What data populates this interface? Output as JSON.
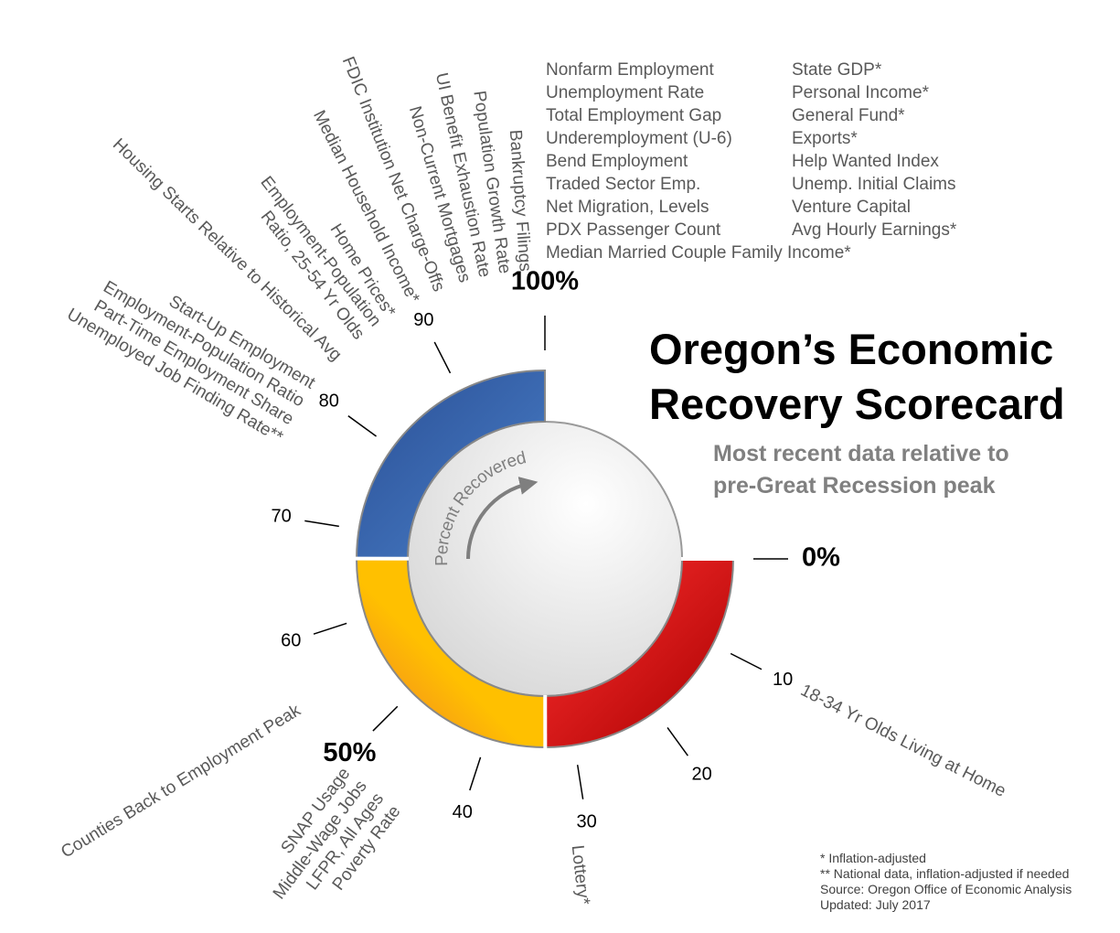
{
  "chart_data": {
    "type": "radial-scorecard",
    "title": [
      "Oregon’s Economic",
      "Recovery Scorecard"
    ],
    "subtitle": [
      "Most recent data relative to",
      "pre-Great Recession peak"
    ],
    "axis_label": "Percent Recovered",
    "range": [
      0,
      100
    ],
    "ticks": [
      {
        "value": 0,
        "label": "0%"
      },
      10,
      20,
      30,
      40,
      {
        "value": 50,
        "label": "50%"
      },
      60,
      70,
      80,
      90,
      {
        "value": 100,
        "label": "100%"
      }
    ],
    "segments": [
      {
        "start": 0,
        "end": 33.3,
        "color": "#c00000"
      },
      {
        "start": 33.3,
        "end": 66.7,
        "color": "#ffc000"
      },
      {
        "start": 66.7,
        "end": 100,
        "color": "#2f5597"
      }
    ],
    "indicators": [
      {
        "value": 10,
        "labels": [
          "18-34 Yr Olds Living at Home"
        ]
      },
      {
        "value": 31,
        "labels": [
          "Lottery*"
        ]
      },
      {
        "value": 47,
        "labels": [
          "SNAP Usage",
          "Middle-Wage Jobs",
          "LFPR, All Ages",
          "Poverty Rate"
        ]
      },
      {
        "value": 55,
        "labels": [
          "Counties Back to Employment Peak"
        ]
      },
      {
        "value": 78,
        "labels": [
          "Start-Up Employment",
          "Employment-Population Ratio",
          "Part-Time Employment Share",
          "Unemployed Job Finding Rate**"
        ]
      },
      {
        "value": 83,
        "labels": [
          "Housing Starts Relative to Historical Avg"
        ]
      },
      {
        "value": 86,
        "labels": [
          "Employment-Population",
          "Ratio, 25-54 Yr Olds"
        ]
      },
      {
        "value": 88,
        "labels": [
          "Home Prices*"
        ]
      },
      {
        "value": 90,
        "labels": [
          "Median Household Income*"
        ]
      },
      {
        "value": 92,
        "labels": [
          "FDIC Institution Net Charge-Offs"
        ]
      },
      {
        "value": 94,
        "labels": [
          "Non-Current Mortgages"
        ]
      },
      {
        "value": 95.5,
        "labels": [
          "UI Benefit Exhaustion Rate"
        ]
      },
      {
        "value": 97,
        "labels": [
          "Population Growth Rate"
        ]
      },
      {
        "value": 98.5,
        "labels": [
          "Bankruptcy Filings"
        ]
      }
    ],
    "recovered_indicators": [
      [
        "Nonfarm Employment",
        "Unemployment Rate",
        "Total Employment Gap",
        "Underemployment (U-6)",
        "Bend Employment",
        "Traded Sector Emp.",
        "Net Migration, Levels",
        "PDX Passenger Count",
        "Median Married Couple Family Income*"
      ],
      [
        "State GDP*",
        "Personal Income*",
        "General Fund*",
        "Exports*",
        "Help Wanted Index",
        "Unemp. Initial Claims",
        "Venture Capital",
        "Avg Hourly Earnings*"
      ]
    ],
    "notes": [
      "* Inflation-adjusted",
      "** National data, inflation-adjusted if needed",
      "Source: Oregon Office of Economic Analysis",
      "Updated: July 2017"
    ]
  }
}
